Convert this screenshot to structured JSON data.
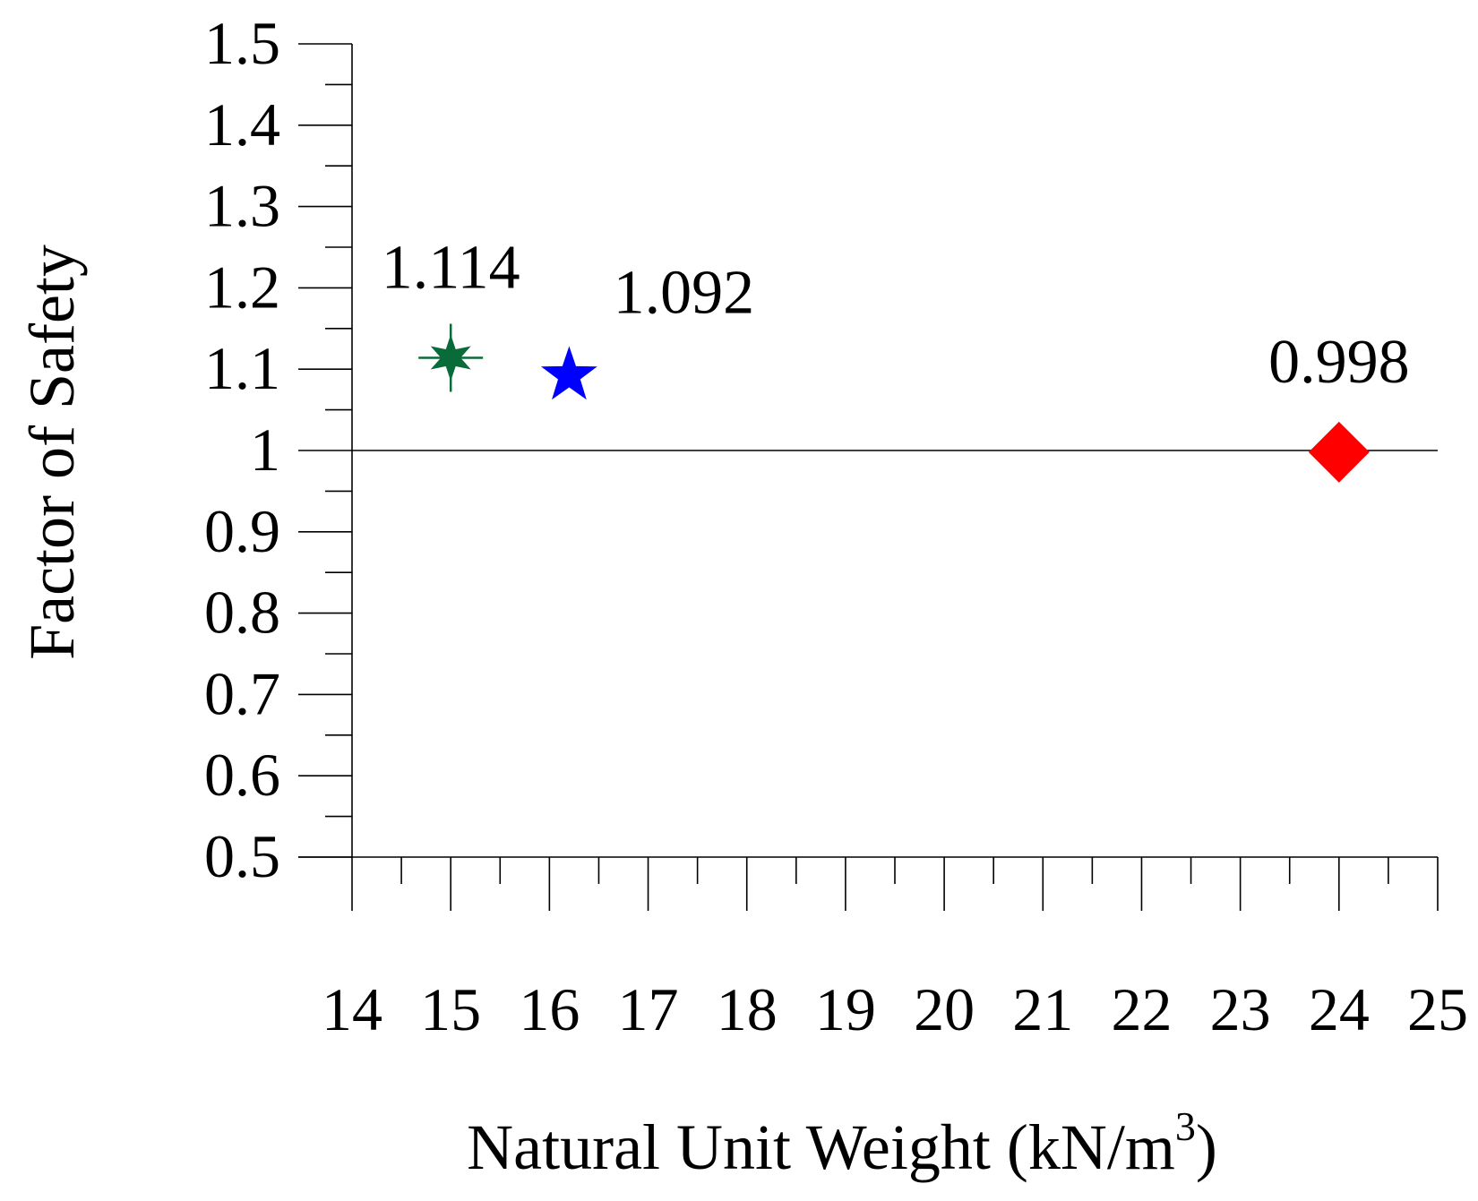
{
  "chart_data": {
    "type": "scatter",
    "title": "",
    "xlabel": "Natural Unit Weight (kN/m",
    "xlabel_superscript": "3",
    "xlabel_close": ")",
    "ylabel": "Factor of Safety",
    "xlim": [
      14,
      25
    ],
    "ylim": [
      0.5,
      1.5
    ],
    "x_ticks": [
      "14",
      "15",
      "16",
      "17",
      "18",
      "19",
      "20",
      "21",
      "22",
      "23",
      "24",
      "25"
    ],
    "y_ticks": [
      "0.5",
      "0.6",
      "0.7",
      "0.8",
      "0.9",
      "1",
      "1.1",
      "1.2",
      "1.3",
      "1.4",
      "1.5"
    ],
    "reference_line_y": 1.0,
    "grid": false,
    "legend": "none",
    "points": [
      {
        "x": 15.0,
        "y": 1.114,
        "label": "1.114",
        "marker": "asterisk",
        "color": "#0a6b3a"
      },
      {
        "x": 16.2,
        "y": 1.092,
        "label": "1.092",
        "marker": "star",
        "color": "#0000ff"
      },
      {
        "x": 24.0,
        "y": 0.998,
        "label": "0.998",
        "marker": "diamond",
        "color": "#ff0000"
      }
    ]
  }
}
